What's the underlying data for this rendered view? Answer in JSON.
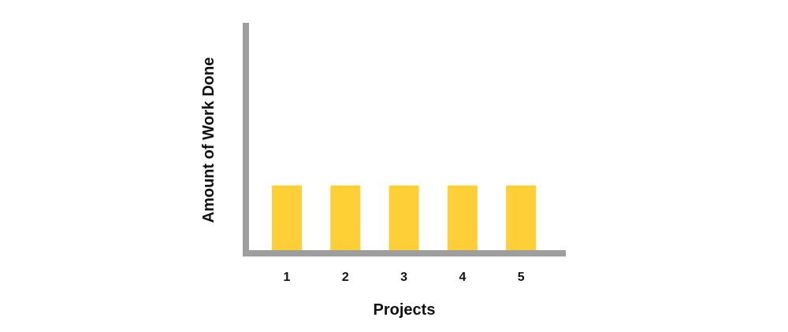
{
  "chart_data": {
    "type": "bar",
    "categories": [
      "1",
      "2",
      "3",
      "4",
      "5"
    ],
    "values": [
      1,
      1,
      1,
      1,
      1
    ],
    "title": "",
    "xlabel": "Projects",
    "ylabel": "Amount of Work Done",
    "ylim": [
      0,
      3.5
    ],
    "grid": false,
    "legend": "none",
    "colors": {
      "bar": "#fecf37",
      "axis": "#9e9e9e",
      "text": "#111111"
    }
  }
}
